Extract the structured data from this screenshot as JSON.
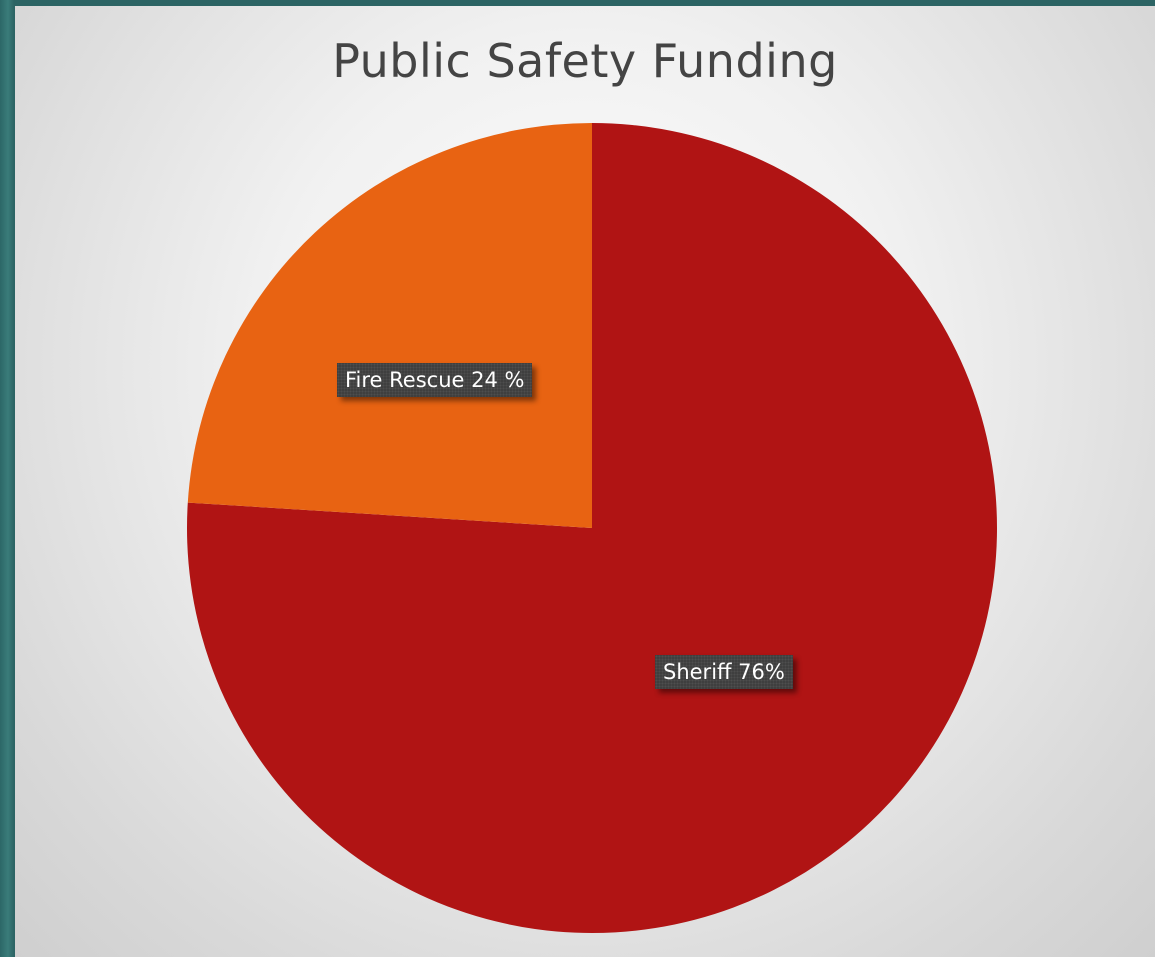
{
  "chart_data": {
    "type": "pie",
    "title": "Public Safety Funding",
    "slices": [
      {
        "name": "Sheriff",
        "value": 76,
        "label": "Sheriff 76%",
        "color": "#b01414"
      },
      {
        "name": "Fire Rescue",
        "value": 24,
        "label": "Fire Rescue 24 %",
        "color": "#e86312"
      }
    ],
    "start_angle": "12 o'clock",
    "direction": "clockwise",
    "legend": "none"
  },
  "colors": {
    "frame": "#2c6464",
    "background": "#efefef",
    "title_text": "#444444",
    "label_box": "#3f3f3f",
    "label_text": "#ffffff"
  }
}
